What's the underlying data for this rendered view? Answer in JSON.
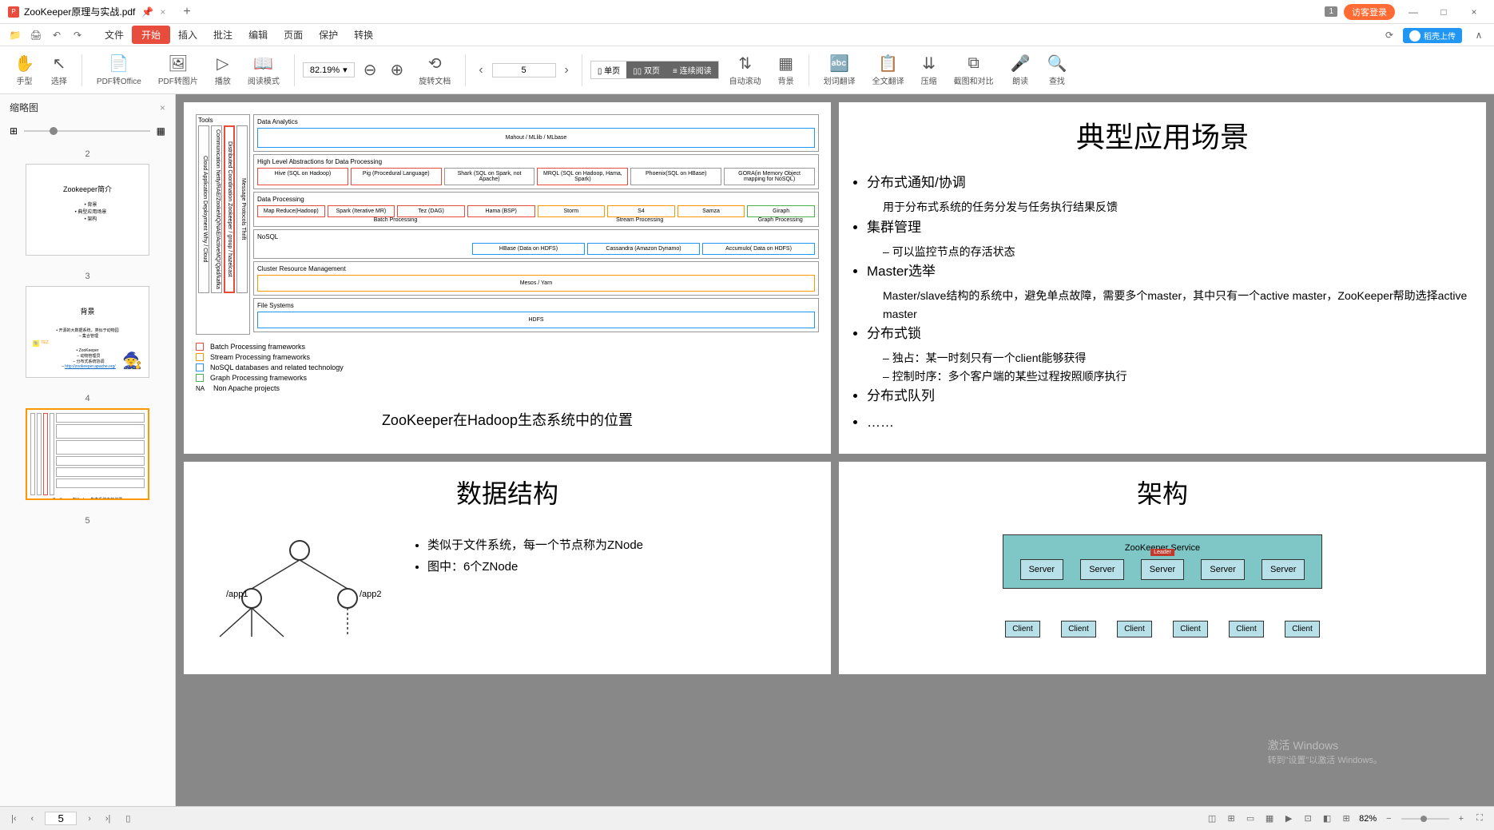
{
  "titlebar": {
    "tab_name": "ZooKeeper原理与实战.pdf",
    "pdf_badge": "P",
    "badge_count": "1",
    "login": "访客登录"
  },
  "upload": {
    "label": "稻壳上传"
  },
  "menubar": {
    "items": [
      "文件",
      "开始",
      "插入",
      "批注",
      "编辑",
      "页面",
      "保护",
      "转换"
    ],
    "start_index": 1
  },
  "toolbar": {
    "hand": "手型",
    "select": "选择",
    "pdf_office": "PDF转Office",
    "pdf_image": "PDF转图片",
    "play": "播放",
    "read_mode": "阅读模式",
    "zoom": "82.19%",
    "rotate": "旋转文档",
    "page_current": "5",
    "single_page": "单页",
    "double_page": "双页",
    "continuous": "连续阅读",
    "auto_scroll": "自动滚动",
    "background": "背景",
    "word_translate": "划词翻译",
    "full_translate": "全文翻译",
    "compress": "压缩",
    "crop_compare": "截图和对比",
    "read_aloud": "朗读",
    "search": "查找"
  },
  "sidebar": {
    "title": "缩略图",
    "thumbs": [
      {
        "num": "2",
        "title": "Zookeeper简介",
        "items": [
          "背景",
          "典型应用场景",
          "架构"
        ]
      },
      {
        "num": "3",
        "title": "背景"
      },
      {
        "num": "4",
        "title": ""
      },
      {
        "num": "5",
        "title": ""
      }
    ],
    "selected": 2
  },
  "page_hadoop": {
    "tools_label": "Tools",
    "vert_cols": [
      {
        "text": "Cloud Application Deployment  Why / Cloud",
        "hl": false
      },
      {
        "text": "Communication  Netty/RAE/ZookeMQ/NAE/ActiveMQ/Qpid/kafka",
        "hl": false
      },
      {
        "text": "Distributed Coordination  Zookeeper / group / hazelcast",
        "hl": true
      },
      {
        "text": "Message Protocols  Thrift",
        "hl": false
      }
    ],
    "sections": {
      "analytics": {
        "title": "Data Analytics",
        "box": "Mahout / MLlib / MLbase"
      },
      "highlevel": {
        "title": "High Level Abstractions for Data Processing",
        "boxes": [
          {
            "text": "Hive (SQL on Hadoop)",
            "cls": "red"
          },
          {
            "text": "Pig (Procedural Language)",
            "cls": "red"
          },
          {
            "text": "Shark (SQL on Spark, not Apache)",
            "cls": ""
          },
          {
            "text": "MRQL (SQL on Hadoop, Hama, Spark)",
            "cls": "red"
          },
          {
            "text": "Phoenix(SQL on HBase)",
            "cls": ""
          },
          {
            "text": "GORA(in Memory Object mapping for NoSQL)",
            "cls": ""
          }
        ]
      },
      "processing": {
        "title": "Data Processing",
        "batch": [
          {
            "text": "Map Reduce(Hadoop)",
            "cls": "red"
          },
          {
            "text": "Spark (Iterative MR)",
            "cls": "red"
          },
          {
            "text": "Tez (DAG)",
            "cls": "red"
          },
          {
            "text": "Hama (BSP)",
            "cls": "red"
          }
        ],
        "stream": [
          {
            "text": "Storm",
            "cls": "orange"
          },
          {
            "text": "S4",
            "cls": "orange"
          },
          {
            "text": "Samza",
            "cls": "orange"
          }
        ],
        "graph": [
          {
            "text": "Giraph",
            "cls": "green"
          }
        ],
        "batch_label": "Batch Processing",
        "stream_label": "Stream Processing",
        "graph_label": "Graph Processing"
      },
      "nosql": {
        "title": "NoSQL",
        "boxes": [
          {
            "text": "HBase (Data on HDFS)",
            "cls": "blue"
          },
          {
            "text": "Cassandra (Amazon Dynamo)",
            "cls": "blue"
          },
          {
            "text": "Accumulo( Data on HDFS)",
            "cls": "blue"
          }
        ]
      },
      "cluster": {
        "title": "Cluster Resource Management",
        "box": "Mesos / Yarn"
      },
      "fs": {
        "title": "File Systems",
        "box": "HDFS"
      }
    },
    "legend": [
      {
        "color": "#e74c3c",
        "text": "Batch Processing frameworks"
      },
      {
        "color": "#ff9800",
        "text": "Stream Processing frameworks"
      },
      {
        "color": "#2196f3",
        "text": "NoSQL databases and related technology"
      },
      {
        "color": "#4caf50",
        "text": "Graph Processing frameworks"
      },
      {
        "color": "#999",
        "text": "Non Apache projects",
        "prefix": "NA"
      }
    ],
    "caption": "ZooKeeper在Hadoop生态系统中的位置"
  },
  "page_scenarios": {
    "title": "典型应用场景",
    "items": [
      {
        "main": "分布式通知/协调",
        "subs": [
          "用于分布式系统的任务分发与任务执行结果反馈"
        ]
      },
      {
        "main": "集群管理",
        "subs_dash": [
          "可以监控节点的存活状态"
        ]
      },
      {
        "main": "Master选举",
        "subs": [
          "Master/slave结构的系统中，避免单点故障，需要多个master，其中只有一个active master，ZooKeeper帮助选择active master"
        ]
      },
      {
        "main": "分布式锁",
        "subs_dash": [
          "独占：某一时刻只有一个client能够获得",
          "控制时序：多个客户端的某些过程按照顺序执行"
        ]
      },
      {
        "main": "分布式队列",
        "subs": []
      },
      {
        "main": "……",
        "subs": []
      }
    ]
  },
  "page_datastruct": {
    "title": "数据结构",
    "app1": "/app1",
    "app2": "/app2",
    "bullets": [
      "类似于文件系统，每一个节点称为ZNode",
      "图中：6个ZNode"
    ]
  },
  "page_arch": {
    "title": "架构",
    "service_label": "ZooKeeper Service",
    "server": "Server",
    "leader": "Leader",
    "client": "Client",
    "bg_color": "#7fc7c7",
    "box_color": "#b8e0e8"
  },
  "statusbar": {
    "page": "5",
    "zoom": "82%",
    "icons": [
      "◫",
      "⊞",
      "▭",
      "▦",
      "▶",
      "⊡",
      "◧",
      "⊞"
    ]
  },
  "watermark": {
    "line1": "激活 Windows",
    "line2": "转到\"设置\"以激活 Windows。"
  }
}
